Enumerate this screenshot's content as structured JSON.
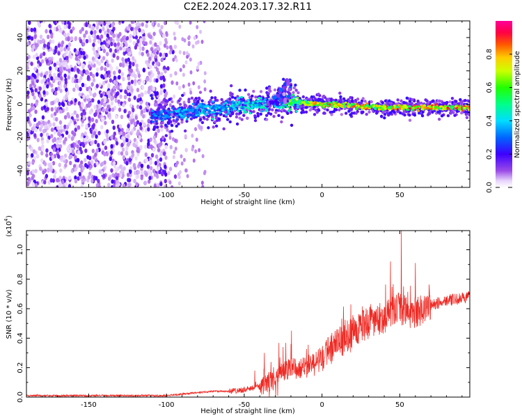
{
  "title": "C2E2.2024.203.17.32.R11",
  "colors": {
    "snr_line": "#ee2a24",
    "axis": "#000000"
  },
  "chart_data": [
    {
      "type": "heatmap",
      "title": "C2E2.2024.203.17.32.R11",
      "xlabel": "Height of straight line (km)",
      "ylabel": "Frequency (Hz)",
      "xlim": [
        -190,
        95
      ],
      "ylim": [
        -50,
        50
      ],
      "xticks": [
        -150,
        -100,
        -50,
        0,
        50
      ],
      "yticks": [
        -40,
        -20,
        0,
        20,
        40
      ],
      "colorbar": {
        "label": "Normalized spectral amplitude",
        "range": [
          0.0,
          1.0
        ],
        "ticks": [
          0.0,
          0.2,
          0.4,
          0.6,
          0.8
        ],
        "colormap": "rainbow (white-violet-blue-cyan-green-yellow-red-magenta)"
      },
      "features": [
        {
          "kind": "noise",
          "x_range": [
            -190,
            -100
          ],
          "freq_range": [
            -50,
            50
          ],
          "amplitude": 0.15
        },
        {
          "kind": "signal",
          "x": [
            -110,
            -90,
            -70,
            -50,
            -30,
            -15,
            0,
            20,
            40,
            60,
            80,
            95
          ],
          "freq": [
            -7,
            -5,
            -3,
            -1,
            1,
            1,
            0,
            -1,
            -2,
            -2,
            -2,
            -2
          ],
          "amplitude": [
            0.35,
            0.4,
            0.45,
            0.45,
            0.5,
            0.7,
            0.85,
            0.85,
            0.85,
            0.9,
            0.9,
            0.9
          ]
        },
        {
          "kind": "plume",
          "x_range": [
            -35,
            -20
          ],
          "freq_range": [
            0,
            18
          ],
          "amplitude": 0.25
        }
      ]
    },
    {
      "type": "line",
      "xlabel": "Height of straight line (km)",
      "ylabel": "SNR (10 * v/v)",
      "y_exponent_label": "(x10",
      "y_exponent_power": "4",
      "xlim": [
        -190,
        95
      ],
      "ylim": [
        0,
        1.13
      ],
      "xticks": [
        -150,
        -100,
        -50,
        0,
        50
      ],
      "yticks": [
        0.0,
        0.2,
        0.4,
        0.6,
        0.8,
        1.0
      ],
      "series": [
        {
          "x": [
            -190,
            -170,
            -150,
            -130,
            -110,
            -100,
            -90,
            -80,
            -70,
            -60,
            -50,
            -45,
            -40,
            -35,
            -30,
            -25,
            -20,
            -15,
            -10,
            -5,
            0,
            5,
            10,
            15,
            20,
            25,
            30,
            35,
            40,
            45,
            50,
            55,
            60,
            65,
            70,
            75,
            80,
            85,
            90,
            95
          ],
          "y": [
            0.01,
            0.01,
            0.01,
            0.01,
            0.01,
            0.01,
            0.02,
            0.03,
            0.04,
            0.04,
            0.05,
            0.06,
            0.07,
            0.1,
            0.12,
            0.17,
            0.2,
            0.19,
            0.21,
            0.25,
            0.28,
            0.32,
            0.36,
            0.4,
            0.45,
            0.48,
            0.5,
            0.52,
            0.54,
            0.58,
            0.6,
            0.58,
            0.57,
            0.6,
            0.62,
            0.64,
            0.66,
            0.66,
            0.67,
            0.68
          ],
          "peaks": [
            {
              "x": 51,
              "y": 1.13
            },
            {
              "x": 44,
              "y": 0.92
            },
            {
              "x": 60,
              "y": 0.91
            },
            {
              "x": -25,
              "y": 0.34
            },
            {
              "x": -20,
              "y": 0.36
            }
          ]
        }
      ]
    }
  ]
}
